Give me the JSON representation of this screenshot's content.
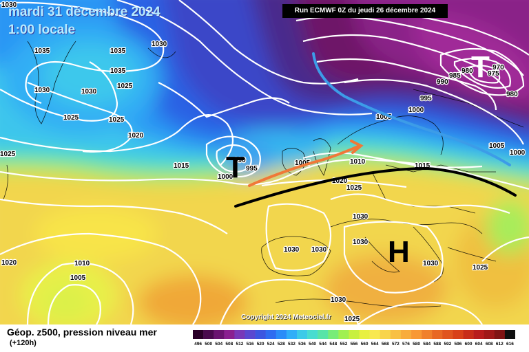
{
  "header": {
    "date": "mardi 31 décembre 2024",
    "time": "1:00 locale",
    "run": "Run ECMWF 0Z du jeudi 26 décembre 2024"
  },
  "copyright": "Copyright 2024 Meteociel.fr",
  "footer": {
    "title": "Géop. z500, pression niveau mer",
    "lead": "(+120h)"
  },
  "pressure_systems": [
    {
      "symbol": "T",
      "kind": "low-west-ireland",
      "color": "#000000"
    },
    {
      "symbol": "T",
      "kind": "low-scandinavia",
      "color": "#ffffff"
    },
    {
      "symbol": "H",
      "kind": "high-central-europe",
      "color": "#000000"
    }
  ],
  "isobar_labels": [
    "1030",
    "1035",
    "1035",
    "1030",
    "1035",
    "1030",
    "1025",
    "1025",
    "1025",
    "1020",
    "1015",
    "1025",
    "990",
    "995",
    "1000",
    "1005",
    "1010",
    "1015",
    "1020",
    "1025",
    "1005",
    "1000",
    "995",
    "985",
    "980",
    "975",
    "970",
    "990",
    "980",
    "1000",
    "1005",
    "1030",
    "1030",
    "1030",
    "1030",
    "1030",
    "1030",
    "1020",
    "1010",
    "1005",
    "1030",
    "1025",
    "1025"
  ],
  "scale": {
    "labels": [
      "496",
      "500",
      "504",
      "508",
      "512",
      "516",
      "520",
      "524",
      "528",
      "532",
      "536",
      "540",
      "544",
      "548",
      "552",
      "556",
      "560",
      "564",
      "568",
      "572",
      "576",
      "580",
      "584",
      "588",
      "592",
      "596",
      "600",
      "604",
      "608",
      "612",
      "616"
    ],
    "colors": [
      "#2a0028",
      "#4a0a4e",
      "#6a1470",
      "#8a2090",
      "#7838b8",
      "#5a48d0",
      "#3c56e0",
      "#2e6cf0",
      "#2a8cf8",
      "#30aef8",
      "#3ccae8",
      "#48dcd0",
      "#58e4a8",
      "#78ec78",
      "#a0f050",
      "#c8f040",
      "#e8f040",
      "#f8e850",
      "#f8d44c",
      "#f8c044",
      "#f8ac3c",
      "#f89834",
      "#f0802c",
      "#e86824",
      "#e0541e",
      "#d84018",
      "#c82c18",
      "#b81c1c",
      "#a01818",
      "#801414",
      "#101010"
    ]
  }
}
